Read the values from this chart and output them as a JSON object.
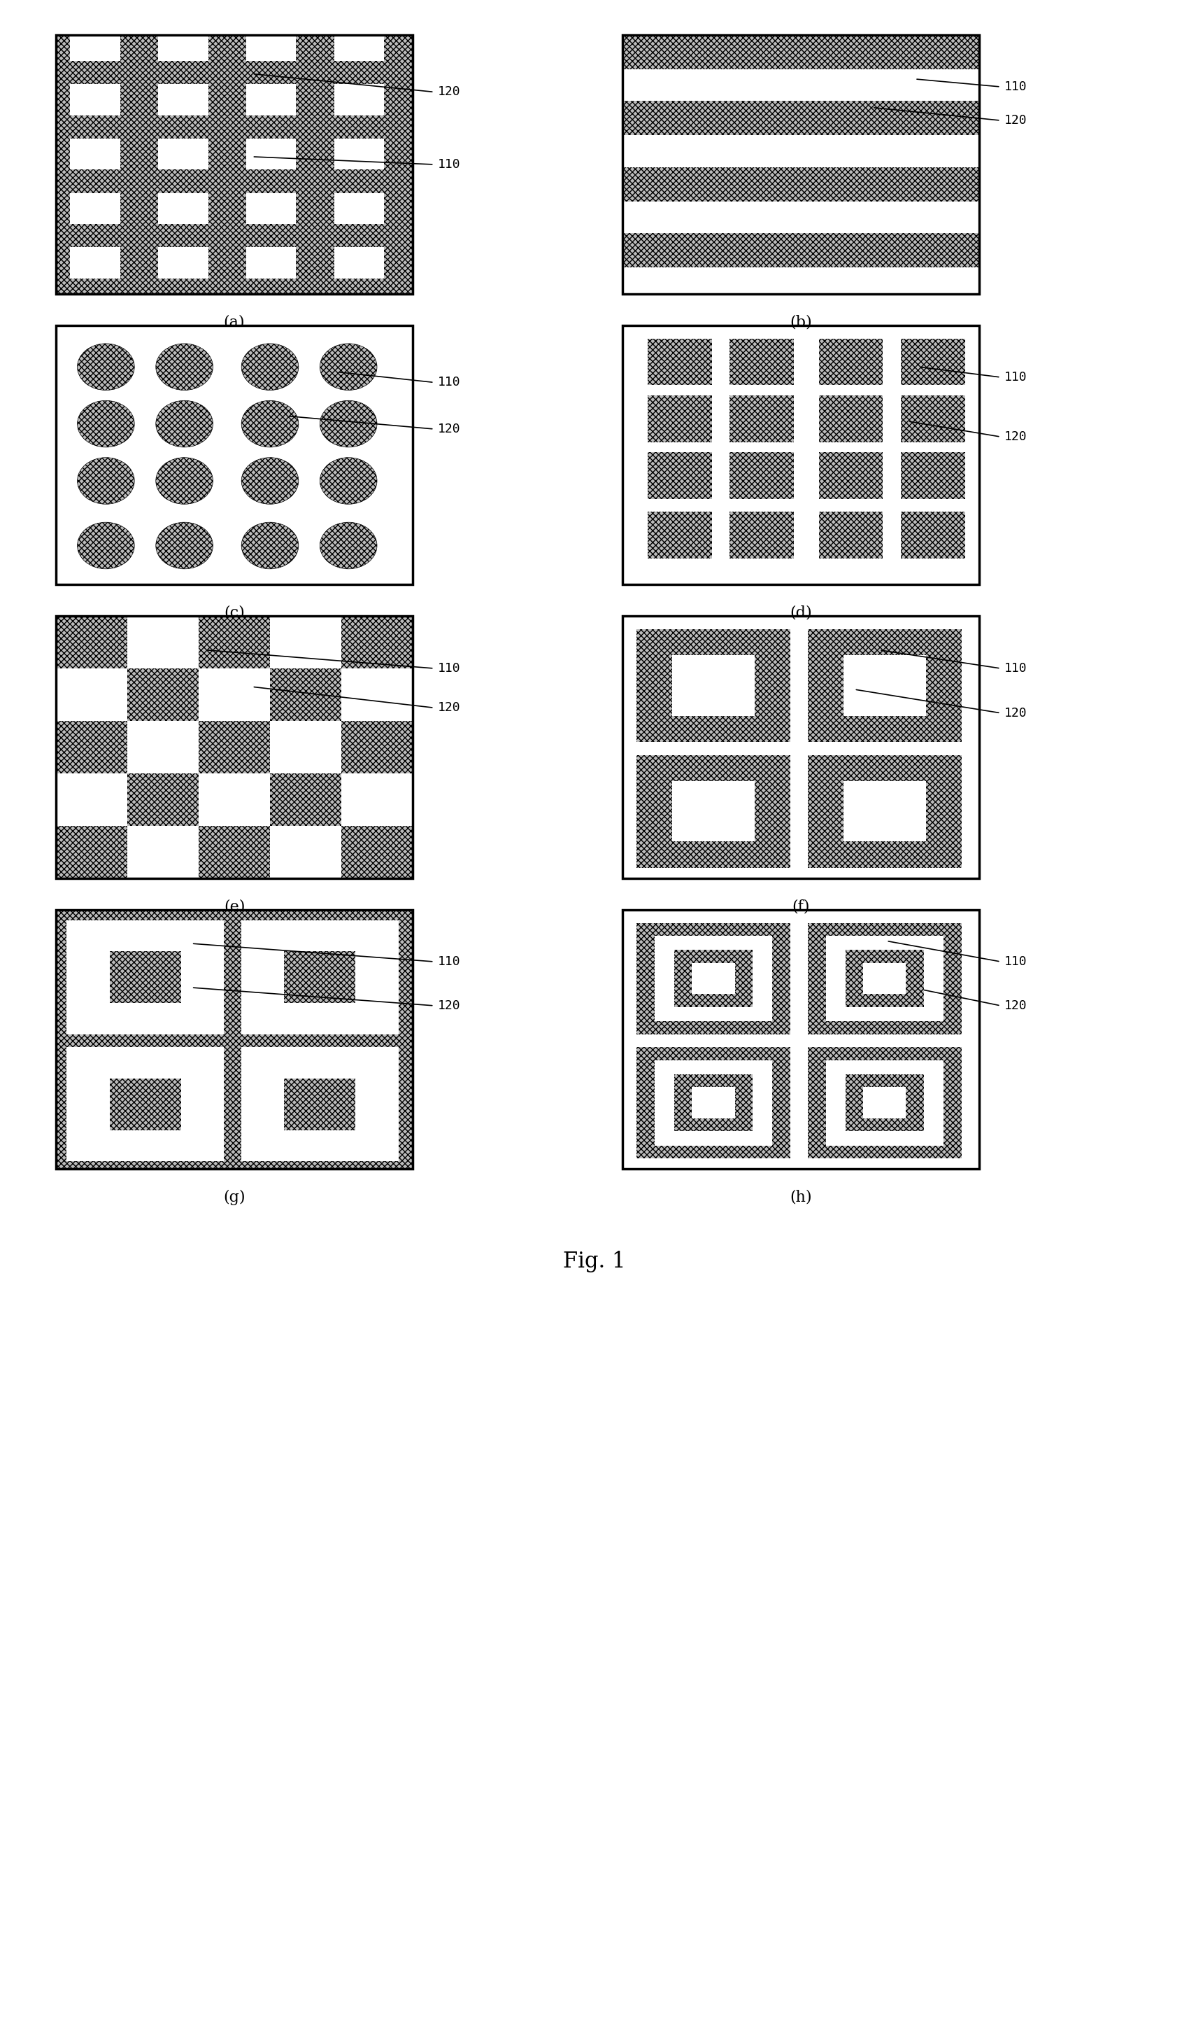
{
  "fig_width": 17.0,
  "fig_height": 29.19,
  "bg_color": "#ffffff",
  "panel_labels": [
    "(a)",
    "(b)",
    "(c)",
    "(d)",
    "(e)",
    "(f)",
    "(g)",
    "(h)"
  ],
  "fig_label": "Fig. 1",
  "label_110": "110",
  "label_120": "120",
  "hatch_color": "#aaaaaa",
  "dark_gray": "#888888",
  "border_color": "#000000",
  "hatch_pattern": "xxxx",
  "panel_border_lw": 2.5,
  "label_fontsize": 13,
  "sublabel_fontsize": 16,
  "fig_label_fontsize": 22
}
